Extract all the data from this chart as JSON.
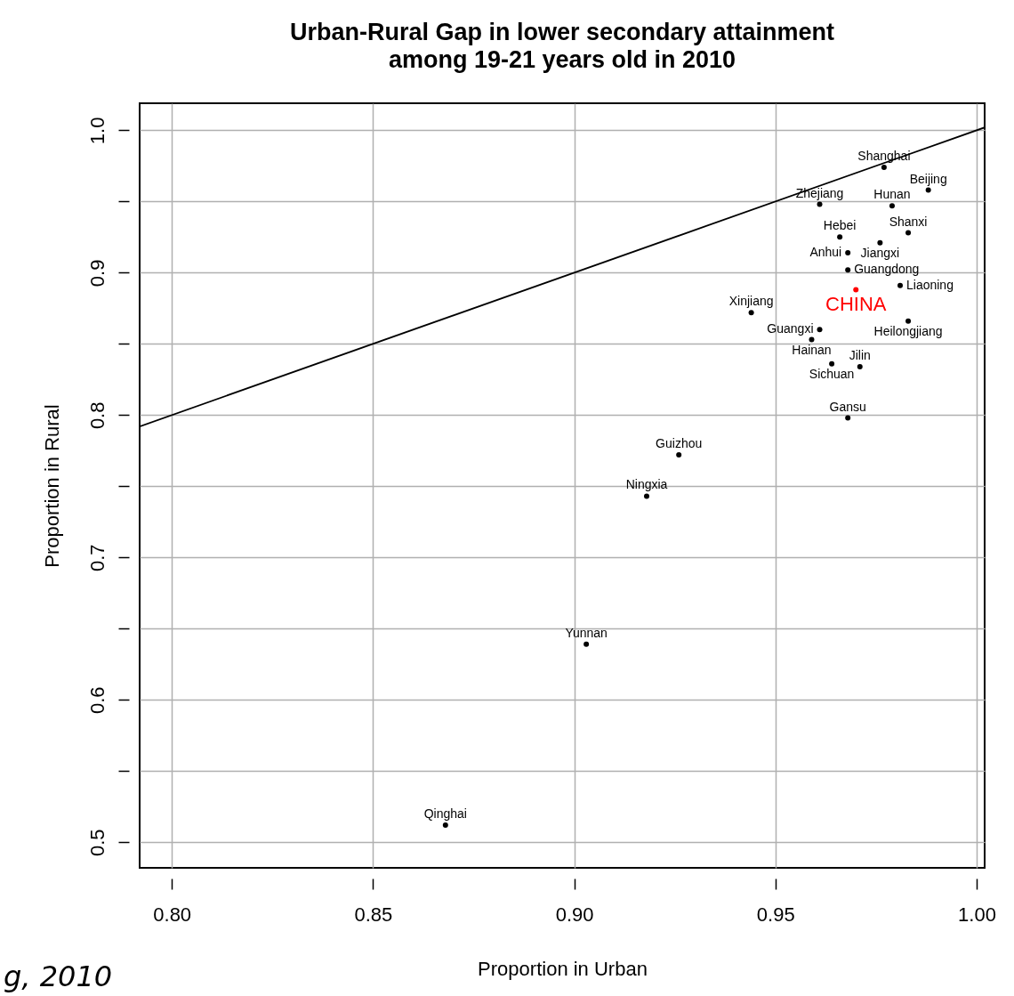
{
  "chart_data": {
    "type": "scatter",
    "title": [
      "Urban-Rural Gap in lower secondary attainment",
      "among 19-21 years old in 2010"
    ],
    "xlabel": "Proportion in Urban",
    "ylabel": "Proportion in Rural",
    "xlim": [
      0.792,
      1.002
    ],
    "ylim": [
      0.482,
      1.019
    ],
    "xticks": [
      {
        "value": 0.8,
        "label": "0.80"
      },
      {
        "value": 0.85,
        "label": "0.85"
      },
      {
        "value": 0.9,
        "label": "0.90"
      },
      {
        "value": 0.95,
        "label": "0.95"
      },
      {
        "value": 1,
        "label": "1.00"
      }
    ],
    "yticks": [
      0.5,
      {
        "value": 0.55,
        "label": null
      },
      0.6,
      {
        "value": 0.65,
        "label": null
      },
      0.7,
      {
        "value": 0.75,
        "label": null
      },
      0.8,
      {
        "value": 0.85,
        "label": null
      },
      0.9,
      {
        "value": 0.95,
        "label": null
      },
      {
        "value": 1,
        "label": "1.0"
      }
    ],
    "grid": true,
    "marker": "circle",
    "annotations": [
      "g, 2010"
    ],
    "series": [
      {
        "color": "#000000",
        "x": [
          0.977,
          0.988,
          0.961,
          0.979,
          0.983,
          0.966,
          0.976,
          0.968,
          0.968,
          0.981,
          0.944,
          0.983,
          0.961,
          0.959,
          0.964,
          0.971,
          0.968,
          0.926,
          0.918,
          0.903,
          0.868
        ],
        "values": [
          0.974,
          0.958,
          0.948,
          0.947,
          0.928,
          0.925,
          0.921,
          0.914,
          0.902,
          0.891,
          0.872,
          0.866,
          0.86,
          0.853,
          0.836,
          0.834,
          0.798,
          0.772,
          0.743,
          0.639,
          0.512
        ],
        "value_labels": [
          "Shanghai",
          "Beijing",
          "Zhejiang",
          "Hunan",
          "Shanxi",
          "Hebei",
          "Jiangxi",
          "Anhui",
          "Guangdong",
          "Liaoning",
          "Xinjiang",
          "Heilongjiang",
          "Guangxi",
          "Hainan",
          "Sichuan",
          "Jilin",
          "Gansu",
          "Guizhou",
          "Ningxia",
          "Yunnan",
          "Qinghai"
        ]
      },
      {
        "color": "#ff0000",
        "x": [
          0.97
        ],
        "values": [
          0.888
        ],
        "value_labels": [
          "CHINA"
        ]
      },
      {
        "type": "line",
        "marker": "none",
        "color": "#000000",
        "x": [
          0.792,
          1.002
        ],
        "values": [
          0.792,
          1.002
        ]
      }
    ]
  }
}
